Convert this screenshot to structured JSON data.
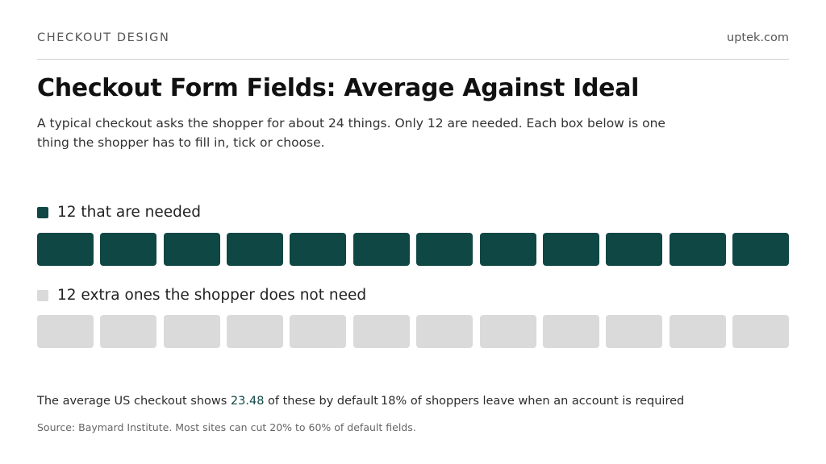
{
  "header": {
    "kicker": "CHECKOUT DESIGN",
    "site": "uptek.com",
    "title": "Checkout Form Fields: Average Against Ideal",
    "subtitle": "A typical checkout asks the shopper for about 24 things. Only 12 are needed. Each box below is one thing the shopper has to fill in, tick or choose."
  },
  "colors": {
    "needed": "#0f4744",
    "extra": "#dadada"
  },
  "chart_data": {
    "type": "unit",
    "title": "Checkout Form Fields: Average Against Ideal",
    "series": [
      {
        "name": "12 that are needed",
        "count": 12
      },
      {
        "name": "12 extra ones the shopper does not need",
        "count": 12
      }
    ]
  },
  "footer": {
    "stat_a_prefix": "The average US checkout shows ",
    "stat_a_value": "23.48",
    "stat_a_suffix": " of these by default",
    "stat_b": "18% of shoppers leave when an account is required",
    "source": "Source: Baymard Institute. Most sites can cut 20% to 60% of default fields."
  }
}
